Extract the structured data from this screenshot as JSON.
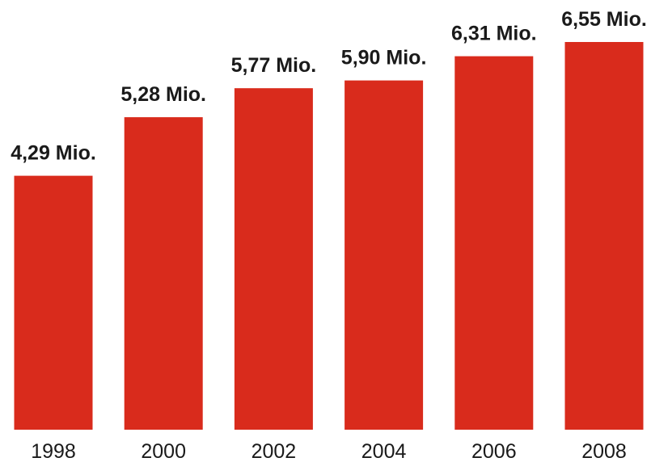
{
  "chart_data": {
    "type": "bar",
    "categories": [
      "1998",
      "2000",
      "2002",
      "2004",
      "2006",
      "2008"
    ],
    "values": [
      4.29,
      5.28,
      5.77,
      5.9,
      6.31,
      6.55
    ],
    "data_labels": [
      "4,29 Mio.",
      "5,28 Mio.",
      "5,77 Mio.",
      "5,90 Mio.",
      "6,31 Mio.",
      "6,55 Mio."
    ],
    "title": "",
    "xlabel": "",
    "ylabel": "",
    "ylim": [
      0,
      6.55
    ],
    "grid": false,
    "legend": "none",
    "bar_color": "#d92b1c"
  }
}
